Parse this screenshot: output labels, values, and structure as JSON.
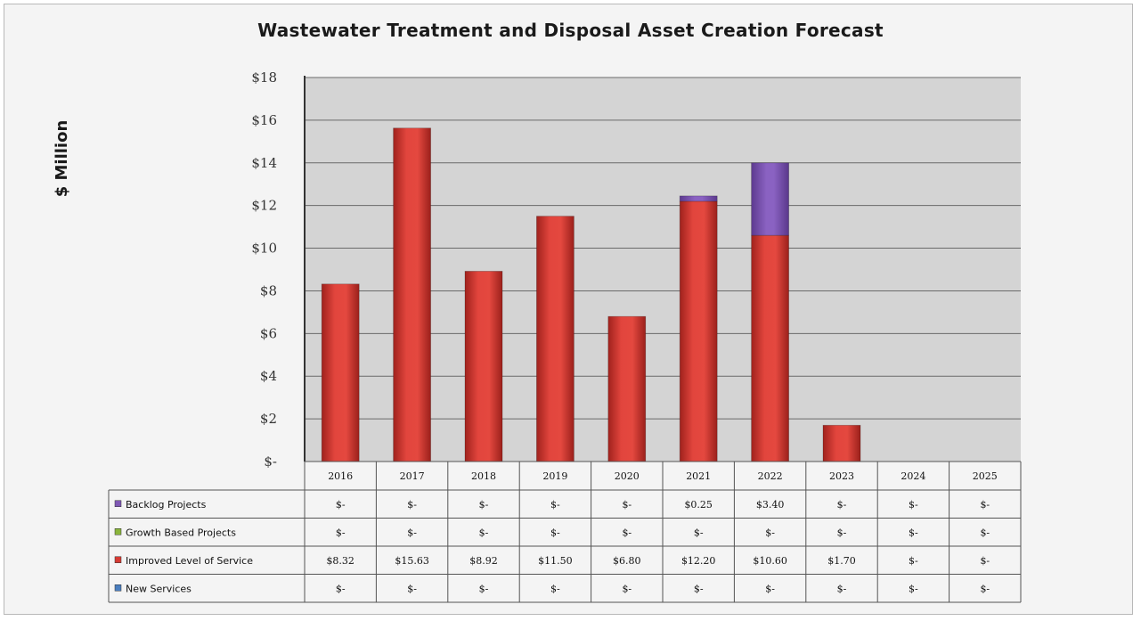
{
  "chart_data": {
    "type": "bar",
    "stacked": true,
    "title": "Wastewater Treatment and Disposal Asset Creation Forecast",
    "ylabel": "$ Million",
    "ylim": [
      0,
      18
    ],
    "y_ticks": [
      0,
      2,
      4,
      6,
      8,
      10,
      12,
      14,
      16,
      18
    ],
    "y_tick_labels": [
      "$-",
      "$2",
      "$4",
      "$6",
      "$8",
      "$10",
      "$12",
      "$14",
      "$16",
      "$18"
    ],
    "grid": true,
    "legend": "data-table",
    "categories": [
      "2016",
      "2017",
      "2018",
      "2019",
      "2020",
      "2021",
      "2022",
      "2023",
      "2024",
      "2025"
    ],
    "series": [
      {
        "name": "Backlog Projects",
        "color": "#7f58b4",
        "values": [
          0,
          0,
          0,
          0,
          0,
          0.25,
          3.4,
          0,
          0,
          0
        ],
        "table_labels": [
          "$-",
          "$-",
          "$-",
          "$-",
          "$-",
          "$0.25",
          "$3.40",
          "$-",
          "$-",
          "$-"
        ]
      },
      {
        "name": "Growth Based Projects",
        "color": "#8ab53c",
        "values": [
          0,
          0,
          0,
          0,
          0,
          0,
          0,
          0,
          0,
          0
        ],
        "table_labels": [
          "$-",
          "$-",
          "$-",
          "$-",
          "$-",
          "$-",
          "$-",
          "$-",
          "$-",
          "$-"
        ]
      },
      {
        "name": "Improved Level of Service",
        "color": "#d63a33",
        "values": [
          8.32,
          15.63,
          8.92,
          11.5,
          6.8,
          12.2,
          10.6,
          1.7,
          0,
          0
        ],
        "table_labels": [
          "$8.32",
          "$15.63",
          "$8.92",
          "$11.50",
          "$6.80",
          "$12.20",
          "$10.60",
          "$1.70",
          "$-",
          "$-"
        ]
      },
      {
        "name": "New Services",
        "color": "#4a7ebf",
        "values": [
          0,
          0,
          0,
          0,
          0,
          0,
          0,
          0,
          0,
          0
        ],
        "table_labels": [
          "$-",
          "$-",
          "$-",
          "$-",
          "$-",
          "$-",
          "$-",
          "$-",
          "$-",
          "$-"
        ]
      }
    ],
    "stack_order": [
      "New Services",
      "Improved Level of Service",
      "Growth Based Projects",
      "Backlog Projects"
    ]
  }
}
